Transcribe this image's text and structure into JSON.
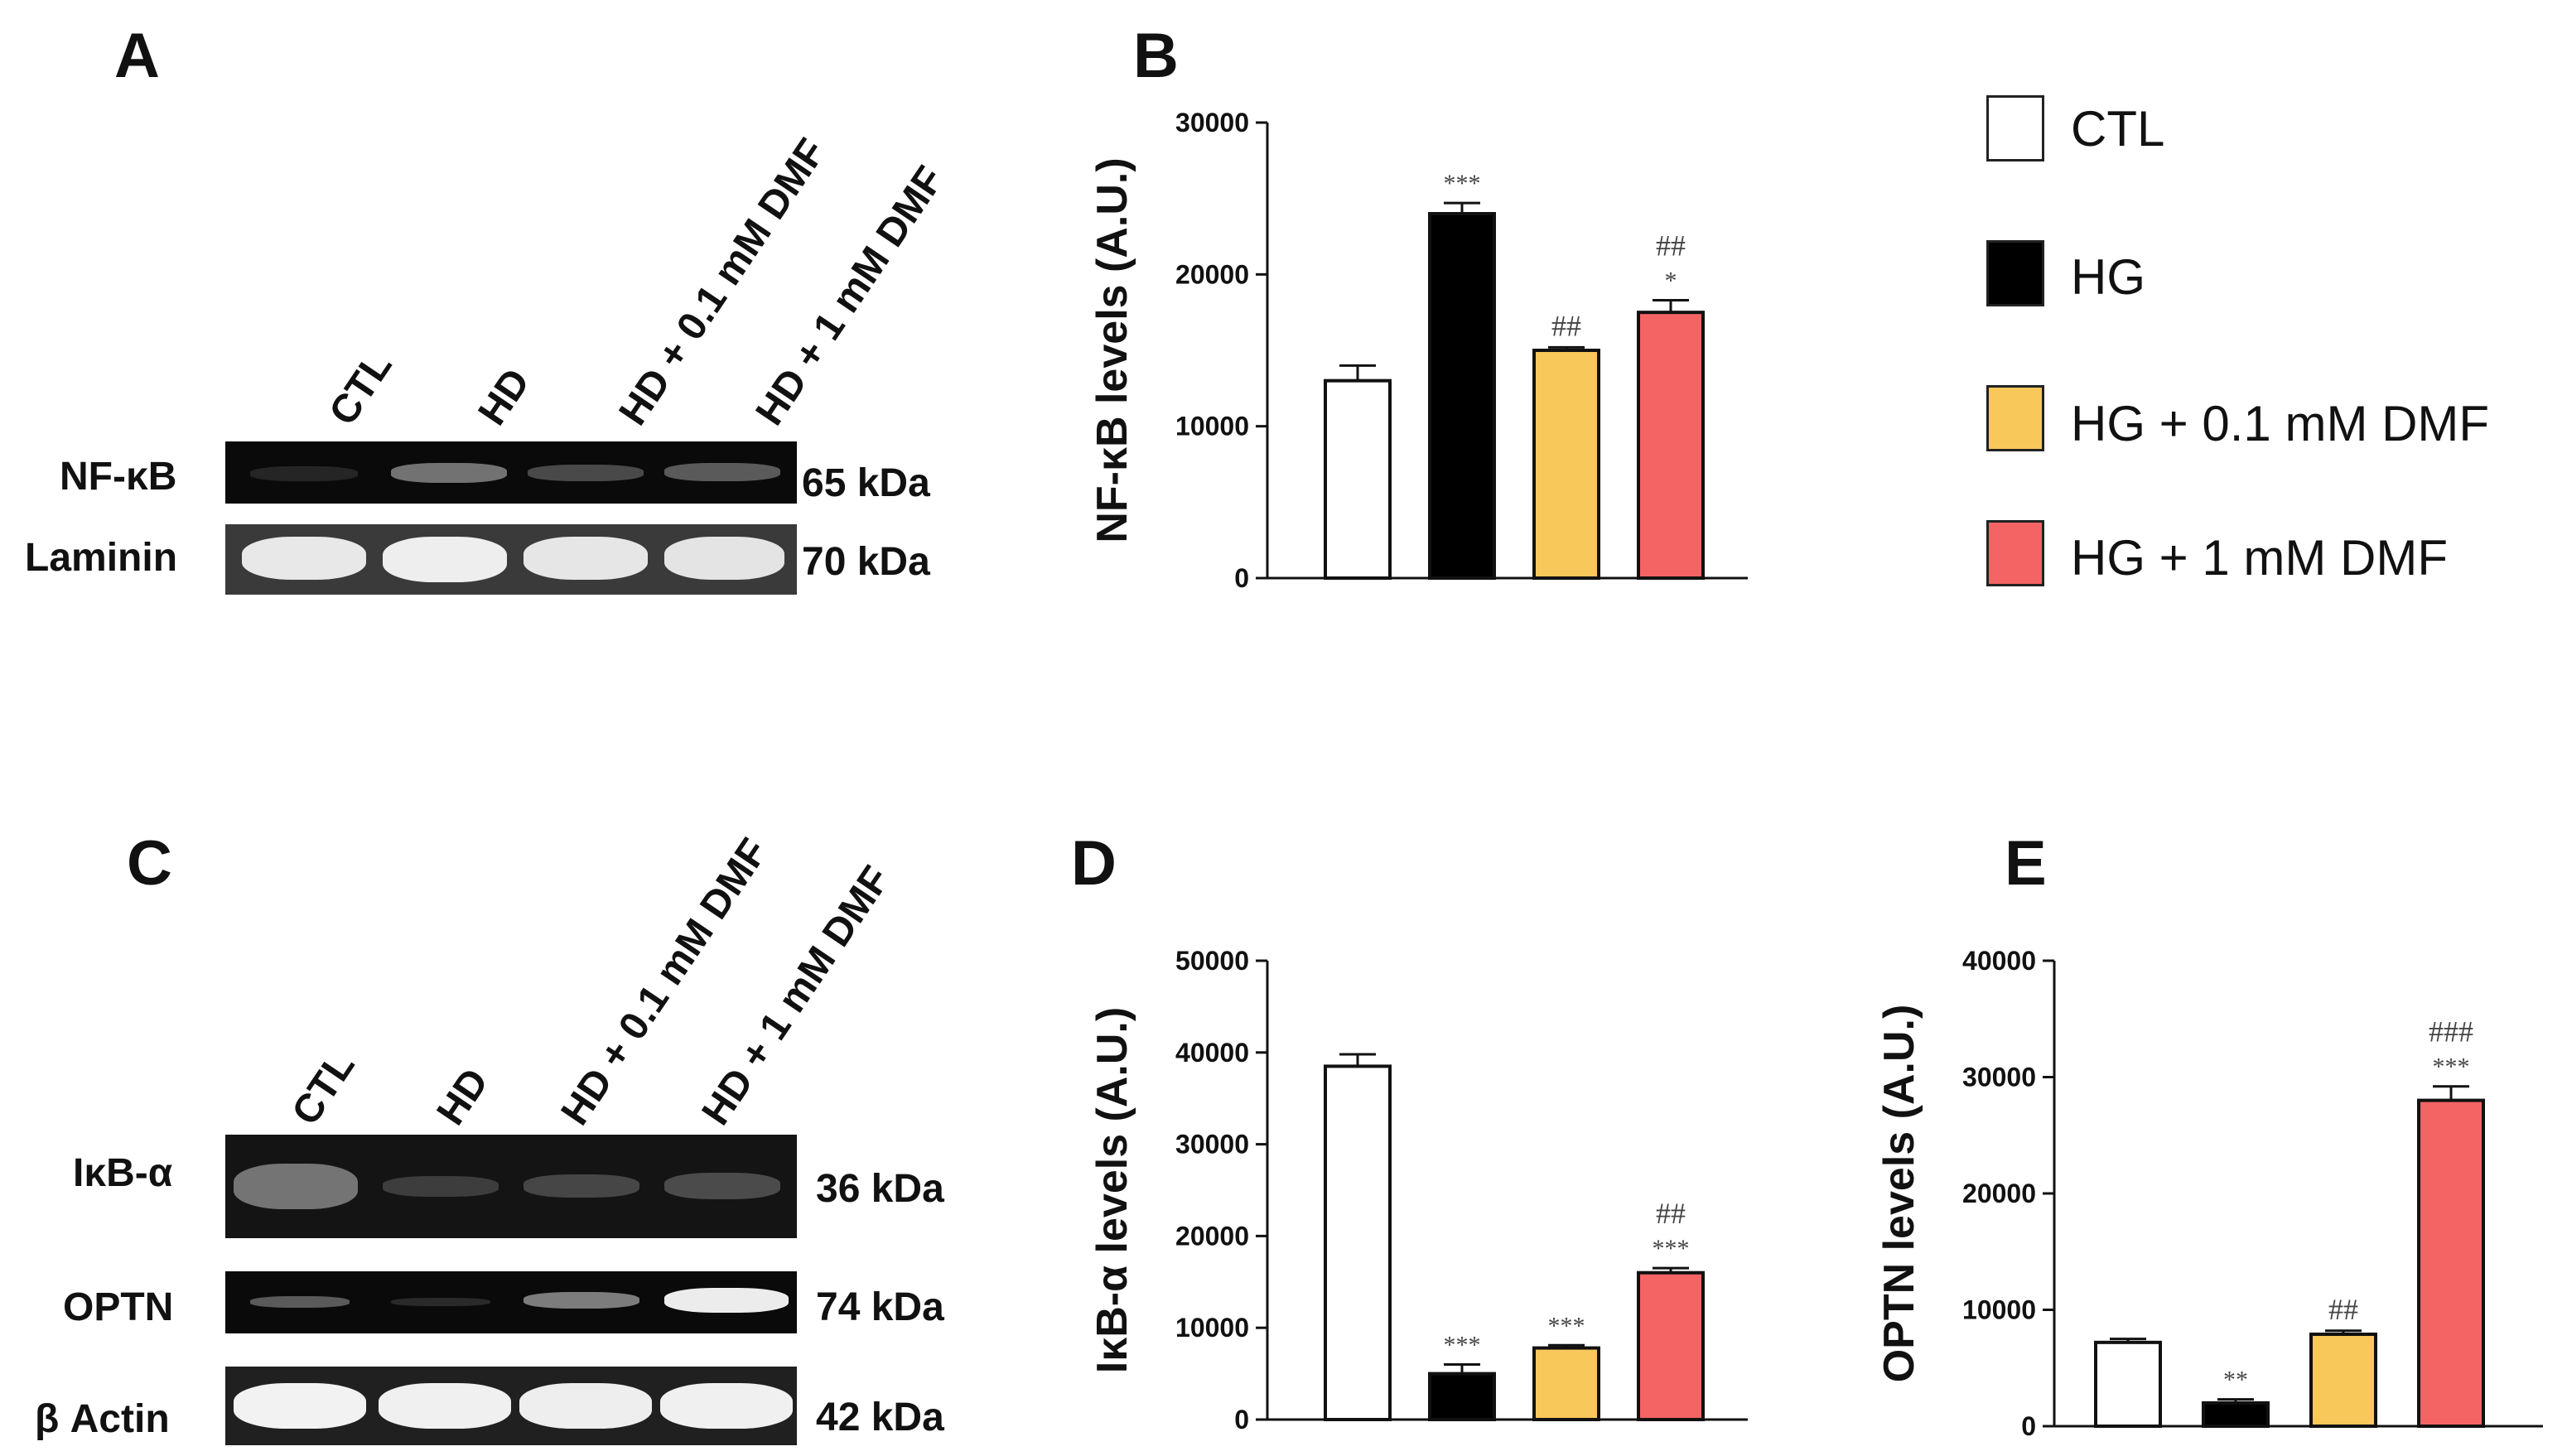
{
  "panels": {
    "A": {
      "letter": "A",
      "lanes": [
        "CTL",
        "HD",
        "HD + 0.1 mM DMF",
        "HD + 1 mM DMF"
      ],
      "rows": [
        {
          "label": "NF-κB",
          "kda": "65 kDa"
        },
        {
          "label": "Laminin",
          "kda": "70 kDa"
        }
      ]
    },
    "C": {
      "letter": "C",
      "lanes": [
        "CTL",
        "HD",
        "HD + 0.1 mM DMF",
        "HD + 1 mM DMF"
      ],
      "rows": [
        {
          "label": "IκB-α",
          "kda": "36 kDa"
        },
        {
          "label": "OPTN",
          "kda": "74 kDa"
        },
        {
          "label": "β Actin",
          "kda": "42 kDa"
        }
      ]
    }
  },
  "legend": {
    "items": [
      {
        "label": "CTL",
        "color": "#ffffff"
      },
      {
        "label": "HG",
        "color": "#000000"
      },
      {
        "label": "HG + 0.1 mM DMF",
        "color": "#f9c85a"
      },
      {
        "label": "HG + 1 mM DMF",
        "color": "#f56464"
      }
    ]
  },
  "chart_data": [
    {
      "panel": "B",
      "type": "bar",
      "title": "",
      "ylabel": "NF-κB levels (A.U.)",
      "categories": [
        "CTL",
        "HG",
        "HG + 0.1 mM DMF",
        "HG + 1 mM DMF"
      ],
      "values": [
        13000,
        24000,
        15000,
        17500
      ],
      "errors": [
        1000,
        700,
        200,
        800
      ],
      "annotations": [
        [],
        [
          "***"
        ],
        [
          "##"
        ],
        [
          "*",
          "##"
        ]
      ],
      "ylim": [
        0,
        30000
      ],
      "yticks": [
        "0",
        "10000",
        "20000",
        "30000"
      ],
      "colors": [
        "#ffffff",
        "#000000",
        "#f9c85a",
        "#f56464"
      ]
    },
    {
      "panel": "D",
      "type": "bar",
      "title": "",
      "ylabel": "IκB-α levels (A.U.)",
      "categories": [
        "CTL",
        "HG",
        "HG + 0.1 mM DMF",
        "HG + 1 mM DMF"
      ],
      "values": [
        38500,
        5000,
        7800,
        16000
      ],
      "errors": [
        1300,
        1000,
        300,
        500
      ],
      "annotations": [
        [],
        [
          "***"
        ],
        [
          "***"
        ],
        [
          "***",
          "##"
        ]
      ],
      "ylim": [
        0,
        50000
      ],
      "yticks": [
        "0",
        "10000",
        "20000",
        "30000",
        "40000",
        "50000"
      ],
      "colors": [
        "#ffffff",
        "#000000",
        "#f9c85a",
        "#f56464"
      ]
    },
    {
      "panel": "E",
      "type": "bar",
      "title": "",
      "ylabel": "OPTN levels (A.U.)",
      "categories": [
        "CTL",
        "HG",
        "HG + 0.1 mM DMF",
        "HG + 1 mM DMF"
      ],
      "values": [
        7200,
        2000,
        7900,
        28000
      ],
      "errors": [
        300,
        300,
        300,
        1200
      ],
      "annotations": [
        [],
        [
          "**"
        ],
        [
          "##"
        ],
        [
          "***",
          "###"
        ]
      ],
      "ylim": [
        0,
        40000
      ],
      "yticks": [
        "0",
        "10000",
        "20000",
        "30000",
        "40000"
      ],
      "colors": [
        "#ffffff",
        "#000000",
        "#f9c85a",
        "#f56464"
      ]
    }
  ]
}
